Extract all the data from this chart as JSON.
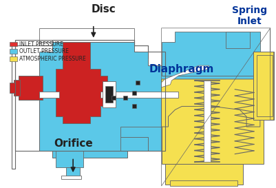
{
  "background_color": "#ffffff",
  "labels": {
    "orifice": "Orifice",
    "diaphragm": "Diaphragm",
    "disc": "Disc",
    "spring_inlet": "Spring\nInlet"
  },
  "legend": [
    {
      "label": "INLET PRESSURE",
      "color": "#e03030"
    },
    {
      "label": "OUTLET PRESSURE",
      "color": "#5bc8e8"
    },
    {
      "label": "ATMOSPHERIC PRESSURE",
      "color": "#f5e050"
    }
  ],
  "colors": {
    "blue": "#5bc8e8",
    "red": "#cc2222",
    "yellow": "#f5e050",
    "outline": "#666666",
    "white": "#ffffff",
    "dark": "#222222"
  },
  "label_color_dark": "#003399",
  "label_fontsize": 10,
  "legend_fontsize": 5.5,
  "figsize": [
    4.02,
    2.73
  ],
  "dpi": 100
}
